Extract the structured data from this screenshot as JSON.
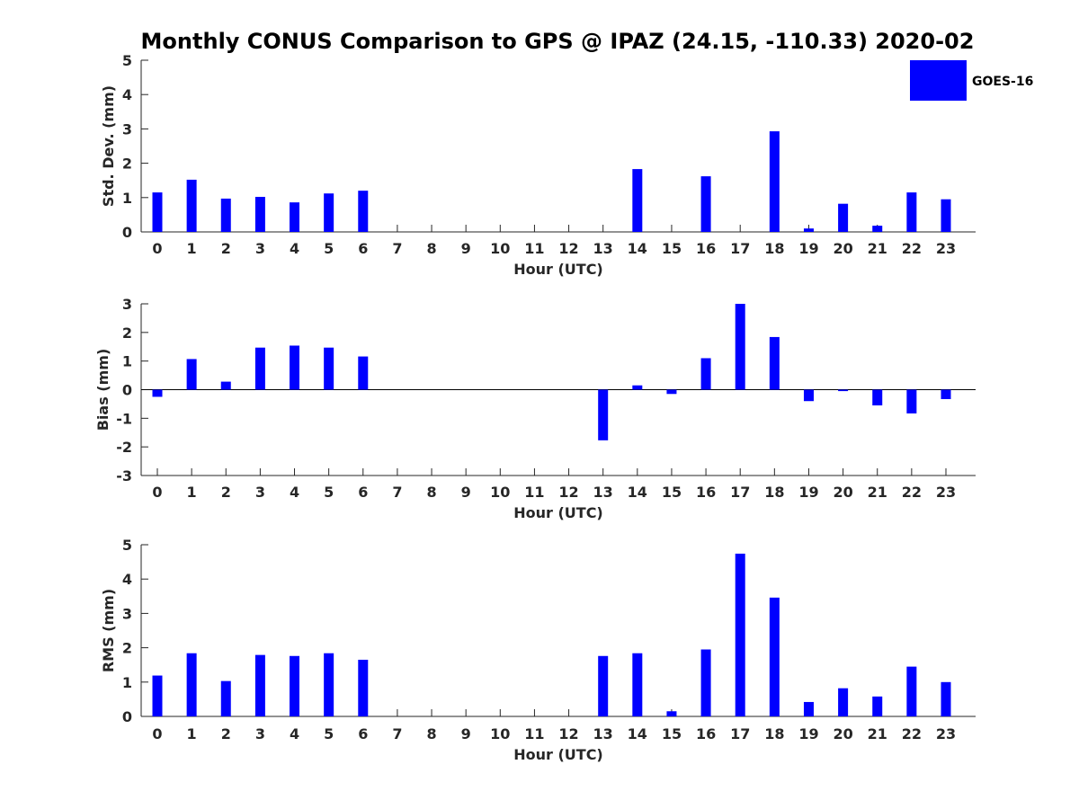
{
  "title": "Monthly CONUS Comparison to GPS @ IPAZ (24.15, -110.33) 2020-02",
  "legend": {
    "label": "GOES-16",
    "color": "#0000FF"
  },
  "chart_data": [
    {
      "type": "bar",
      "name": "std-dev",
      "ylabel": "Std. Dev. (mm)",
      "xlabel": "Hour (UTC)",
      "ylim": [
        0,
        5
      ],
      "yticks": [
        0,
        1,
        2,
        3,
        4,
        5
      ],
      "categories": [
        "0",
        "1",
        "2",
        "3",
        "4",
        "5",
        "6",
        "7",
        "8",
        "9",
        "10",
        "11",
        "12",
        "13",
        "14",
        "15",
        "16",
        "17",
        "18",
        "19",
        "20",
        "21",
        "22",
        "23"
      ],
      "series": [
        {
          "name": "GOES-16",
          "values": [
            1.15,
            1.52,
            0.97,
            1.02,
            0.86,
            1.12,
            1.2,
            null,
            null,
            null,
            null,
            null,
            null,
            null,
            1.83,
            null,
            1.62,
            null,
            2.93,
            0.1,
            0.82,
            0.18,
            1.15,
            0.95
          ]
        }
      ]
    },
    {
      "type": "bar",
      "name": "bias",
      "ylabel": "Bias (mm)",
      "xlabel": "Hour (UTC)",
      "ylim": [
        -3,
        3
      ],
      "yticks": [
        -3,
        -2,
        -1,
        0,
        1,
        2,
        3
      ],
      "categories": [
        "0",
        "1",
        "2",
        "3",
        "4",
        "5",
        "6",
        "7",
        "8",
        "9",
        "10",
        "11",
        "12",
        "13",
        "14",
        "15",
        "16",
        "17",
        "18",
        "19",
        "20",
        "21",
        "22",
        "23"
      ],
      "series": [
        {
          "name": "GOES-16",
          "values": [
            -0.25,
            1.07,
            0.28,
            1.47,
            1.54,
            1.47,
            1.16,
            null,
            null,
            null,
            null,
            null,
            null,
            -1.77,
            0.15,
            -0.15,
            1.1,
            3.0,
            1.84,
            -0.4,
            -0.05,
            -0.55,
            -0.83,
            -0.33
          ]
        }
      ]
    },
    {
      "type": "bar",
      "name": "rms",
      "ylabel": "RMS (mm)",
      "xlabel": "Hour (UTC)",
      "ylim": [
        0,
        5
      ],
      "yticks": [
        0,
        1,
        2,
        3,
        4,
        5
      ],
      "categories": [
        "0",
        "1",
        "2",
        "3",
        "4",
        "5",
        "6",
        "7",
        "8",
        "9",
        "10",
        "11",
        "12",
        "13",
        "14",
        "15",
        "16",
        "17",
        "18",
        "19",
        "20",
        "21",
        "22",
        "23"
      ],
      "series": [
        {
          "name": "GOES-16",
          "values": [
            1.19,
            1.84,
            1.03,
            1.79,
            1.76,
            1.84,
            1.65,
            null,
            null,
            null,
            null,
            null,
            null,
            1.76,
            1.84,
            0.15,
            1.95,
            4.74,
            3.46,
            0.42,
            0.82,
            0.58,
            1.45,
            1.0
          ]
        }
      ]
    }
  ]
}
